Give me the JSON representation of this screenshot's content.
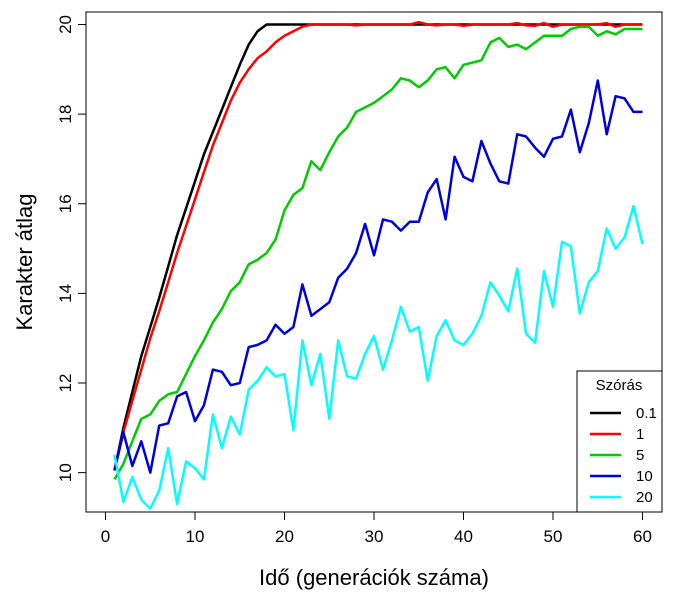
{
  "chart_data": {
    "type": "line",
    "xlabel": "Idő (generációk száma)",
    "ylabel": "Karakter átlag",
    "xlim": [
      0,
      60
    ],
    "ylim": [
      9.3,
      20.1
    ],
    "xticks": [
      "0",
      "10",
      "20",
      "30",
      "40",
      "50",
      "60"
    ],
    "yticks": [
      "10",
      "12",
      "14",
      "16",
      "18",
      "20"
    ],
    "grid": false,
    "legend": {
      "title": "Szórás",
      "position": "bottom-right"
    },
    "x": [
      1,
      2,
      3,
      4,
      5,
      6,
      7,
      8,
      9,
      10,
      11,
      12,
      13,
      14,
      15,
      16,
      17,
      18,
      19,
      20,
      21,
      22,
      23,
      24,
      25,
      26,
      27,
      28,
      29,
      30,
      31,
      32,
      33,
      34,
      35,
      36,
      37,
      38,
      39,
      40,
      41,
      42,
      43,
      44,
      45,
      46,
      47,
      48,
      49,
      50,
      51,
      52,
      53,
      54,
      55,
      56,
      57,
      58,
      59,
      60
    ],
    "series": [
      {
        "name": "0.1",
        "color": "#000000",
        "values": [
          10.05,
          11.0,
          11.8,
          12.6,
          13.25,
          13.9,
          14.6,
          15.3,
          15.9,
          16.5,
          17.1,
          17.6,
          18.1,
          18.6,
          19.1,
          19.55,
          19.85,
          20.0,
          20.0,
          20.0,
          20.0,
          20.0,
          20.0,
          20.0,
          20.0,
          20.0,
          20.0,
          20.0,
          20.0,
          20.0,
          20.0,
          20.0,
          20.0,
          20.0,
          20.0,
          20.0,
          20.0,
          20.0,
          20.0,
          20.0,
          20.0,
          20.0,
          20.0,
          20.0,
          20.0,
          20.0,
          20.0,
          20.0,
          20.0,
          20.0,
          20.0,
          20.0,
          20.0,
          20.0,
          20.0,
          20.0,
          20.0,
          20.0,
          20.0,
          20.0
        ]
      },
      {
        "name": "1",
        "color": "#ff0000",
        "values": [
          10.05,
          10.9,
          11.6,
          12.3,
          13.0,
          13.6,
          14.25,
          14.9,
          15.5,
          16.1,
          16.7,
          17.3,
          17.8,
          18.3,
          18.7,
          19.0,
          19.25,
          19.4,
          19.6,
          19.75,
          19.85,
          19.95,
          20.0,
          20.0,
          20.0,
          20.0,
          20.0,
          19.98,
          20.0,
          20.0,
          20.0,
          20.0,
          20.0,
          20.0,
          20.05,
          20.0,
          19.98,
          20.0,
          20.0,
          19.97,
          20.0,
          20.0,
          20.0,
          20.0,
          20.0,
          20.03,
          19.98,
          19.97,
          20.03,
          19.95,
          20.0,
          20.0,
          20.0,
          20.0,
          20.0,
          20.03,
          19.95,
          20.0,
          20.0,
          20.0
        ]
      },
      {
        "name": "5",
        "color": "#00cc00",
        "values": [
          9.85,
          10.2,
          10.7,
          11.2,
          11.3,
          11.6,
          11.75,
          11.8,
          12.2,
          12.6,
          12.95,
          13.35,
          13.65,
          14.05,
          14.25,
          14.65,
          14.75,
          14.9,
          15.2,
          15.85,
          16.2,
          16.35,
          16.95,
          16.75,
          17.15,
          17.5,
          17.7,
          18.05,
          18.15,
          18.25,
          18.4,
          18.55,
          18.8,
          18.75,
          18.6,
          18.75,
          19.0,
          19.05,
          18.8,
          19.1,
          19.15,
          19.2,
          19.6,
          19.7,
          19.5,
          19.55,
          19.45,
          19.6,
          19.75,
          19.75,
          19.75,
          19.9,
          19.95,
          19.95,
          19.75,
          19.85,
          19.78,
          19.9,
          19.9,
          19.9
        ]
      },
      {
        "name": "10",
        "color": "#0000dd",
        "values": [
          10.05,
          10.9,
          10.15,
          10.7,
          10.0,
          11.05,
          11.1,
          11.7,
          11.8,
          11.15,
          11.5,
          12.3,
          12.25,
          11.95,
          12.0,
          12.8,
          12.85,
          12.95,
          13.3,
          13.1,
          13.25,
          14.2,
          13.5,
          13.65,
          13.8,
          14.35,
          14.55,
          14.9,
          15.55,
          14.85,
          15.65,
          15.6,
          15.4,
          15.6,
          15.6,
          16.25,
          16.55,
          15.65,
          17.05,
          16.6,
          16.5,
          17.4,
          16.9,
          16.5,
          16.45,
          17.55,
          17.5,
          17.25,
          17.05,
          17.45,
          17.5,
          18.1,
          17.15,
          17.8,
          18.75,
          17.55,
          18.4,
          18.35,
          18.05,
          18.05
        ]
      },
      {
        "name": "20",
        "color": "#00ffff",
        "values": [
          10.4,
          9.35,
          9.9,
          9.4,
          9.2,
          9.6,
          10.55,
          9.3,
          10.25,
          10.1,
          9.85,
          11.3,
          10.55,
          11.25,
          10.85,
          11.85,
          12.05,
          12.35,
          12.15,
          12.2,
          10.95,
          12.95,
          11.95,
          12.65,
          11.2,
          12.95,
          12.15,
          12.1,
          12.65,
          13.05,
          12.3,
          12.95,
          13.7,
          13.15,
          13.25,
          12.05,
          13.05,
          13.4,
          12.95,
          12.85,
          13.1,
          13.5,
          14.25,
          13.95,
          13.6,
          14.55,
          13.1,
          12.9,
          14.5,
          13.7,
          15.15,
          15.05,
          13.55,
          14.25,
          14.5,
          15.45,
          15.0,
          15.25,
          15.95,
          15.1
        ]
      }
    ]
  }
}
